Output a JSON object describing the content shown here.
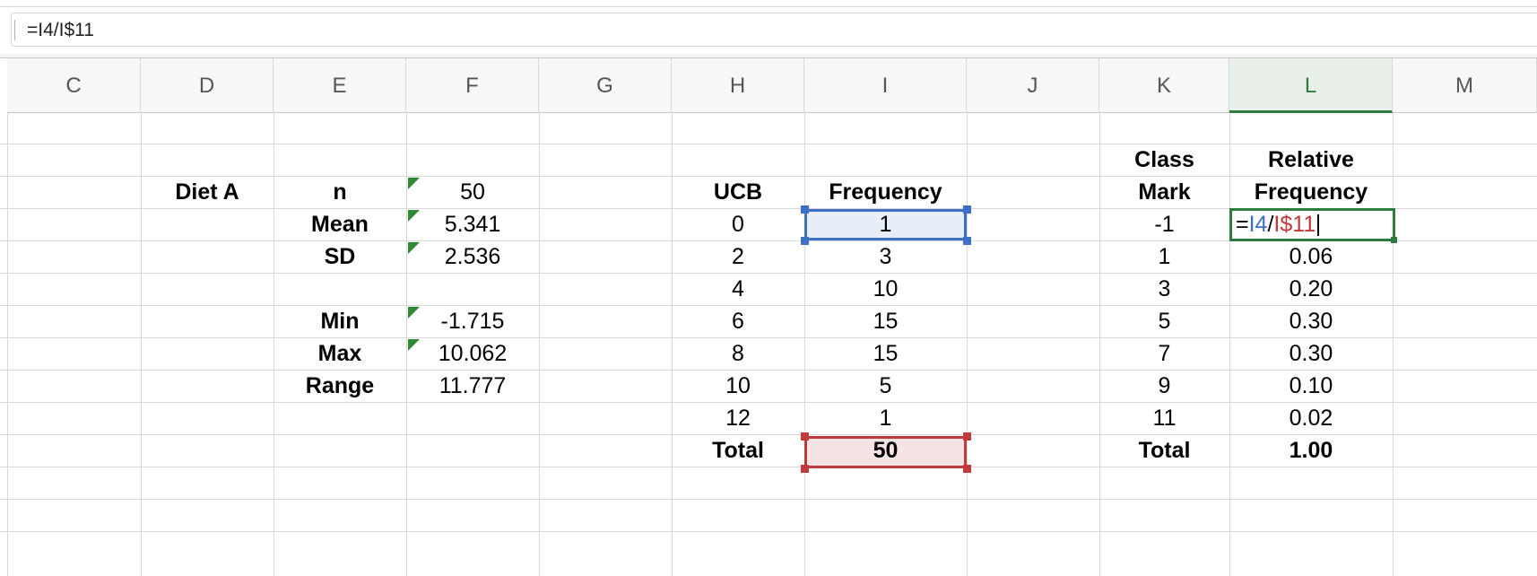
{
  "formula_bar": {
    "formula": "=I4/I$11"
  },
  "columns": [
    "C",
    "D",
    "E",
    "F",
    "G",
    "H",
    "I",
    "J",
    "K",
    "L",
    "M"
  ],
  "active_column": "L",
  "summary": {
    "title": "Diet A",
    "stats": [
      {
        "label": "n",
        "value": "50",
        "has_indicator": true
      },
      {
        "label": "Mean",
        "value": "5.341",
        "has_indicator": true
      },
      {
        "label": "SD",
        "value": "2.536",
        "has_indicator": true
      },
      {
        "label": "",
        "value": "",
        "has_indicator": true
      },
      {
        "label": "Min",
        "value": "-1.715",
        "has_indicator": true
      },
      {
        "label": "Max",
        "value": "10.062",
        "has_indicator": true
      },
      {
        "label": "Range",
        "value": "11.777",
        "has_indicator": false
      }
    ]
  },
  "frequency_table": {
    "header_ucb": "UCB",
    "header_frequency": "Frequency",
    "rows": [
      {
        "ucb": "0",
        "frequency": "1"
      },
      {
        "ucb": "2",
        "frequency": "3"
      },
      {
        "ucb": "4",
        "frequency": "10"
      },
      {
        "ucb": "6",
        "frequency": "15"
      },
      {
        "ucb": "8",
        "frequency": "15"
      },
      {
        "ucb": "10",
        "frequency": "5"
      },
      {
        "ucb": "12",
        "frequency": "1"
      }
    ],
    "total_label": "Total",
    "total_value": "50"
  },
  "relative_table": {
    "header_class_line1": "Class",
    "header_class_line2": "Mark",
    "header_rel_line1": "Relative",
    "header_rel_line2": "Frequency",
    "editing_formula": {
      "eq": "=",
      "ref1": "I4",
      "slash": "/",
      "ref2": "I$11"
    },
    "rows": [
      {
        "class_mark": "-1",
        "relative": ""
      },
      {
        "class_mark": "1",
        "relative": "0.06"
      },
      {
        "class_mark": "3",
        "relative": "0.20"
      },
      {
        "class_mark": "5",
        "relative": "0.30"
      },
      {
        "class_mark": "7",
        "relative": "0.30"
      },
      {
        "class_mark": "9",
        "relative": "0.10"
      },
      {
        "class_mark": "11",
        "relative": "0.02"
      }
    ],
    "total_label": "Total",
    "total_value": "1.00"
  },
  "colors": {
    "selection_blue": "#3e6fc7",
    "selection_red": "#c0393b",
    "active_green": "#2f7a3f",
    "indicator_green": "#2e8a34"
  }
}
